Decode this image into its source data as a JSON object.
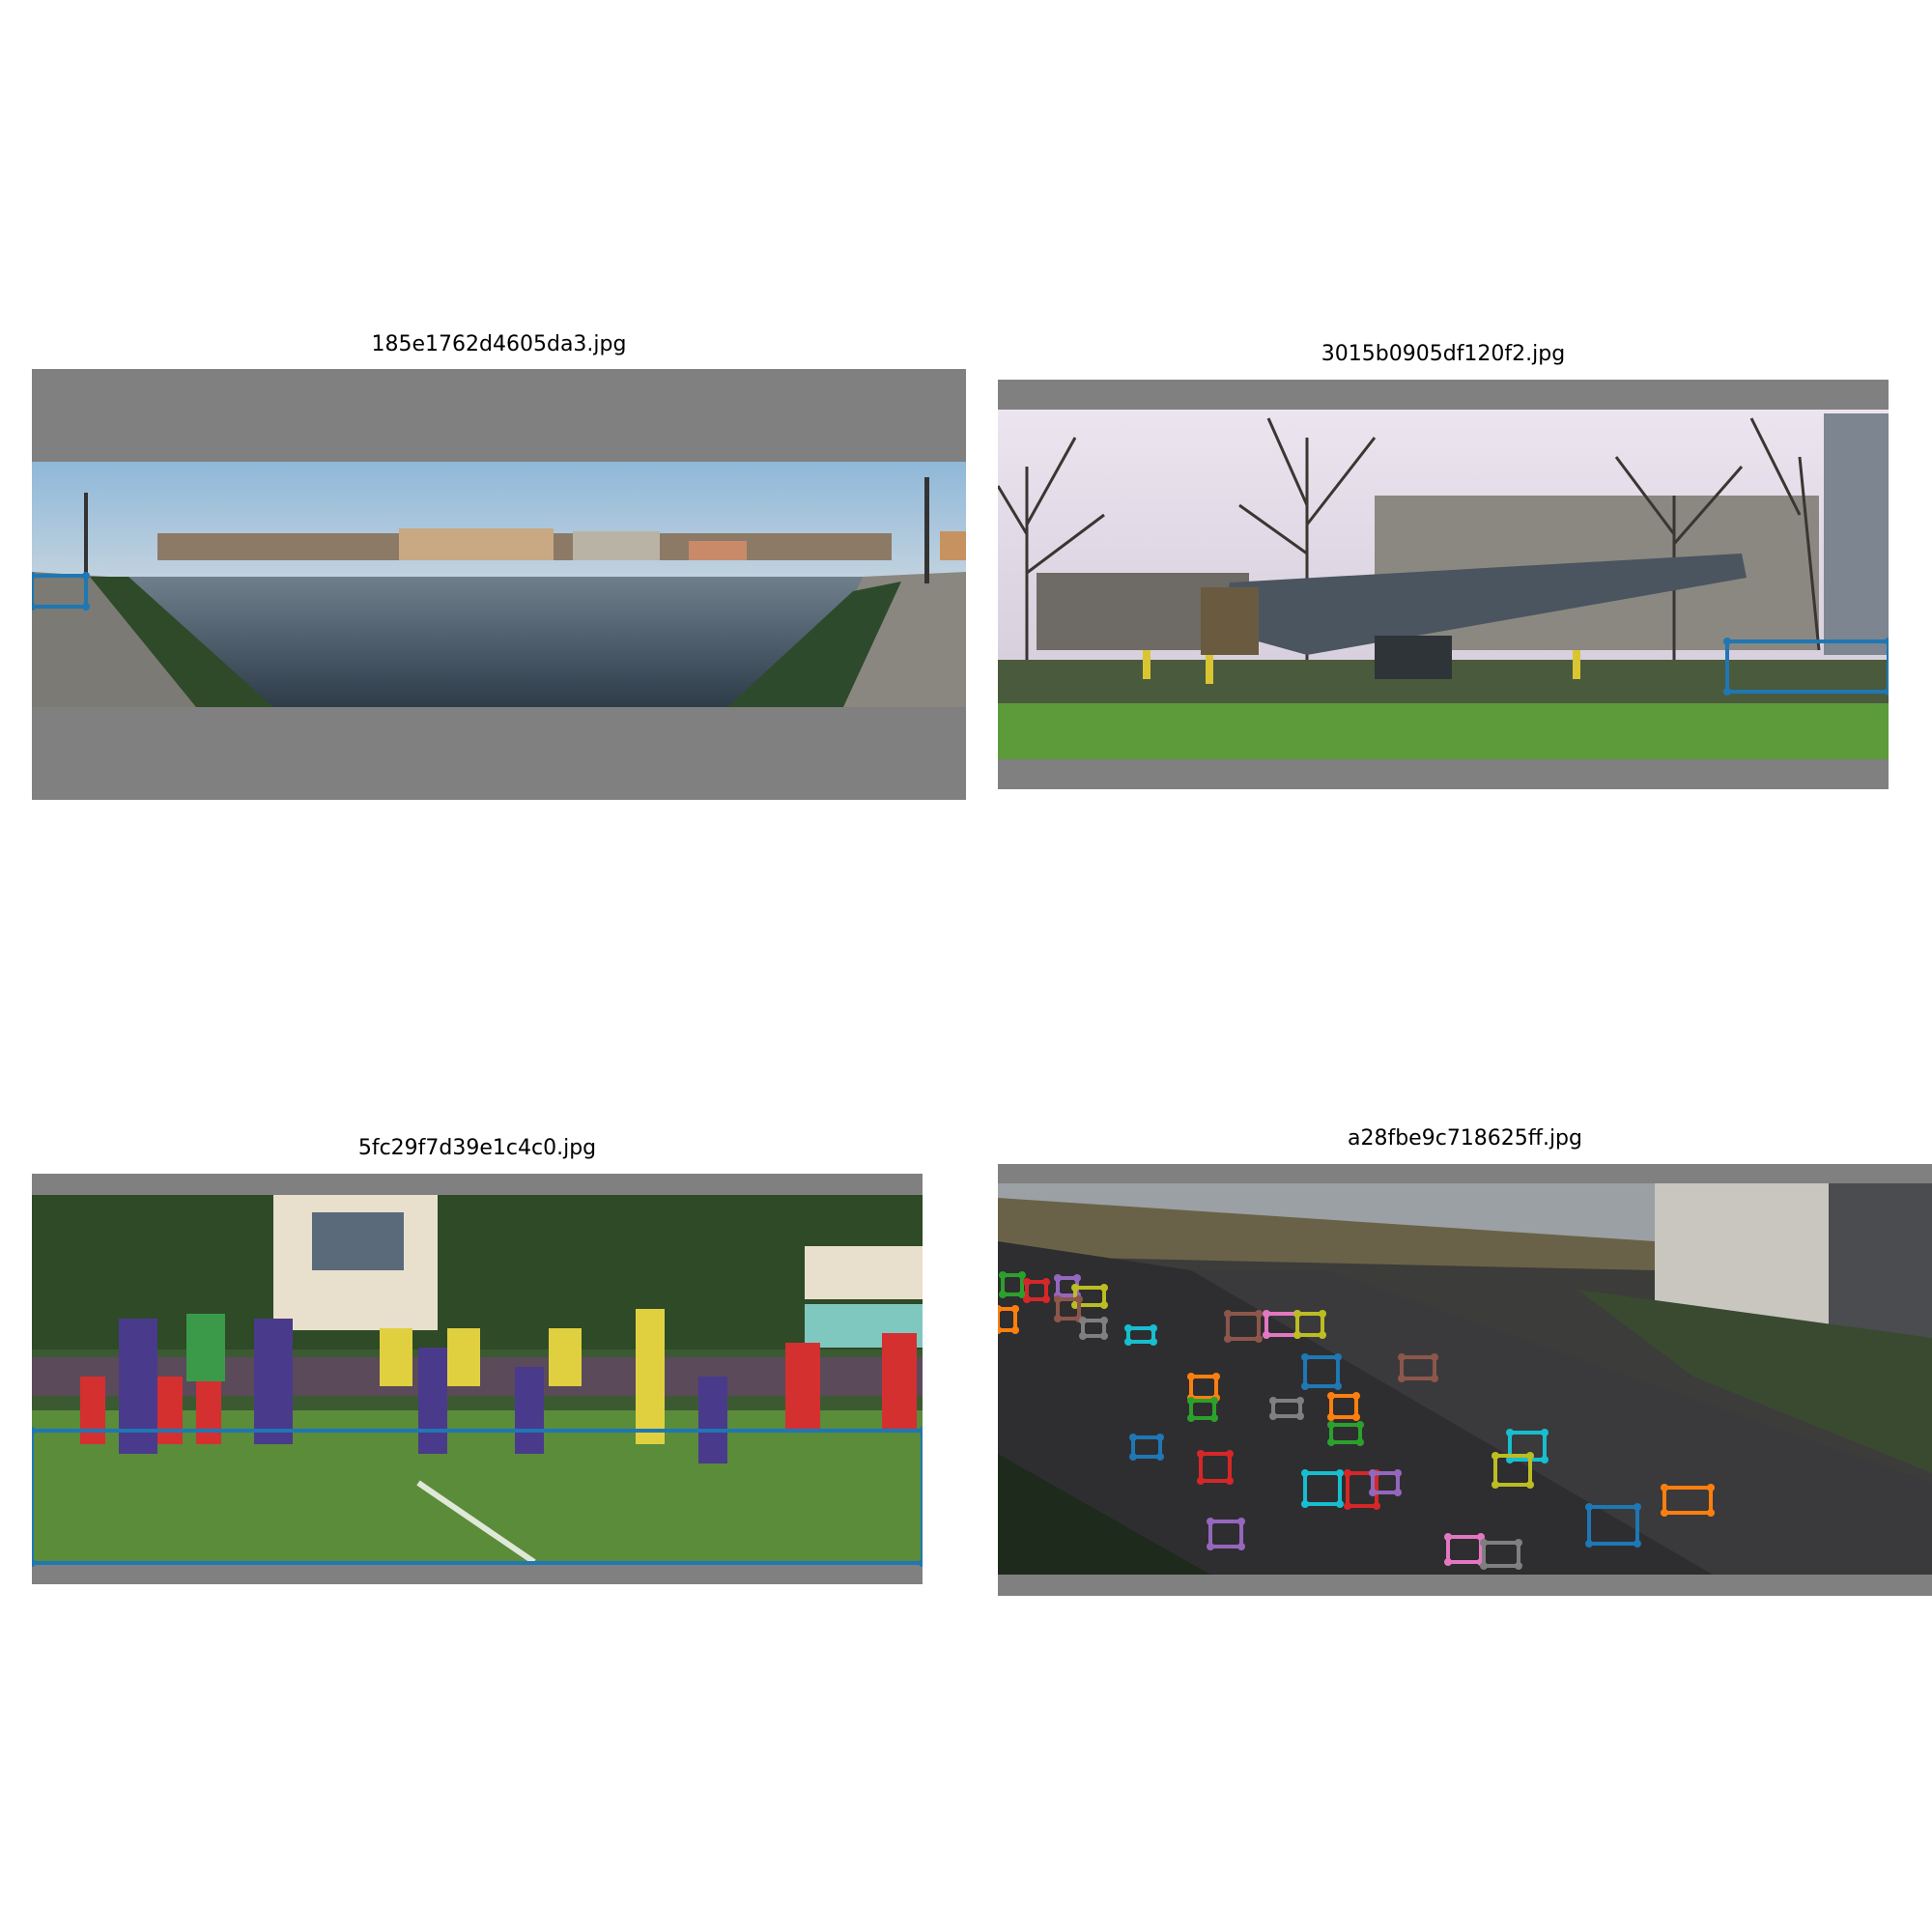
{
  "panels": [
    {
      "title": "185e1762d4605da3.jpg"
    },
    {
      "title": "3015b0905df120f2.jpg"
    },
    {
      "title": "5fc29f7d39e1c4c0.jpg"
    },
    {
      "title": "a28fbe9c718625ff.jpg"
    }
  ],
  "palette": [
    "#1f77b4",
    "#ff7f0e",
    "#2ca02c",
    "#d62728",
    "#9467bd",
    "#8c564b",
    "#e377c2",
    "#7f7f7f",
    "#bcbd22",
    "#17becf"
  ]
}
